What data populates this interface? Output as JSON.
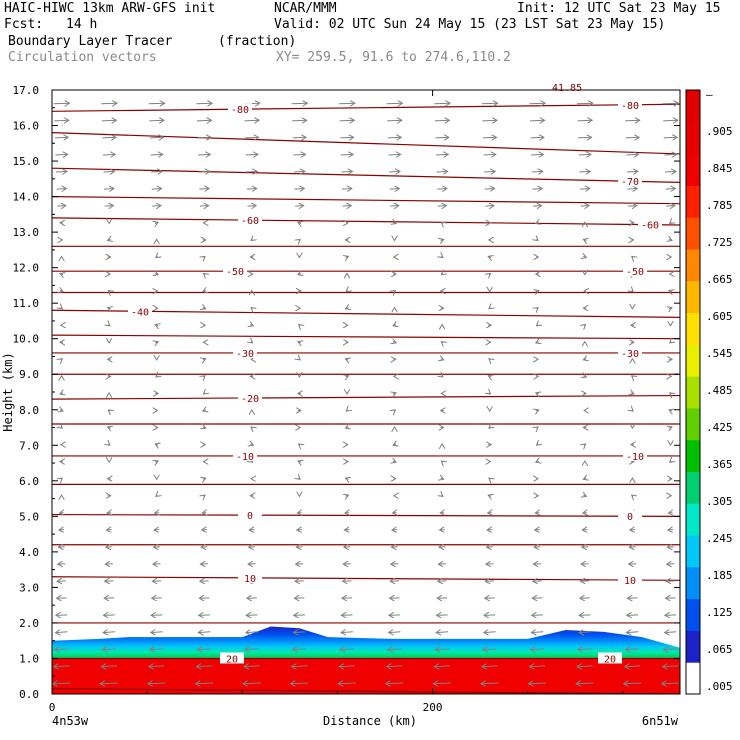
{
  "header": {
    "model": "HAIC-HIWC 13km ARW-GFS init",
    "org": "NCAR/MMM",
    "init": "Init: 12 UTC Sat 23 May 15",
    "fcst_label": "Fcst:",
    "fcst_value": "14 h",
    "valid": "Valid: 02 UTC Sun 24 May 15 (23 LST Sat 23 May 15)",
    "field_name": "Boundary Layer Tracer",
    "field_units": "(fraction)",
    "overlay_name": "Circulation vectors",
    "xy_range": "XY= 259.5, 91.6 to 274.6,110.2"
  },
  "chart_data": {
    "type": "heatmap",
    "xlabel": "Distance (km)",
    "ylabel": "Height (km)",
    "xlim": [
      0,
      330
    ],
    "ylim": [
      0,
      17
    ],
    "x_ticks": [
      {
        "value": 0,
        "label": "0"
      },
      {
        "value": 200,
        "label": "200"
      }
    ],
    "x_end_labels": {
      "left": "4n53w",
      "right": "6n51w"
    },
    "y_ticks": [
      "0.0",
      "1.0",
      "2.0",
      "3.0",
      "4.0",
      "5.0",
      "6.0",
      "7.0",
      "8.0",
      "9.0",
      "10.0",
      "11.0",
      "12.0",
      "13.0",
      "14.0",
      "15.0",
      "16.0",
      "17.0"
    ],
    "colorbar": {
      "labels": [
        ".005",
        ".065",
        ".125",
        ".185",
        ".245",
        ".305",
        ".365",
        ".425",
        ".485",
        ".545",
        ".605",
        ".665",
        ".725",
        ".785",
        ".845",
        ".905",
        "–"
      ],
      "colors": [
        "#ffffff",
        "#1c22c8",
        "#0050f0",
        "#0090f8",
        "#00c8f8",
        "#00e8c8",
        "#00d070",
        "#00c000",
        "#60d000",
        "#a8e000",
        "#e8f000",
        "#ffe000",
        "#ffb800",
        "#ff8800",
        "#ff5000",
        "#ff2000",
        "#f00000",
        "#e80000",
        "#e00000"
      ]
    },
    "tracer_layer": {
      "top_profile_km": [
        [
          0,
          1.5
        ],
        [
          25,
          1.55
        ],
        [
          40,
          1.6
        ],
        [
          60,
          1.6
        ],
        [
          100,
          1.6
        ],
        [
          115,
          1.9
        ],
        [
          130,
          1.85
        ],
        [
          145,
          1.6
        ],
        [
          180,
          1.55
        ],
        [
          250,
          1.55
        ],
        [
          270,
          1.8
        ],
        [
          290,
          1.75
        ],
        [
          310,
          1.6
        ],
        [
          330,
          1.3
        ]
      ],
      "core_top_km": 1.0,
      "core_value": 1.0
    },
    "isotherms": [
      {
        "value": -80,
        "y": [
          16.4,
          16.6
        ],
        "labels": [
          "-80",
          "-80"
        ]
      },
      {
        "value": -75,
        "y": [
          15.8,
          15.2
        ],
        "labels": []
      },
      {
        "value": -70,
        "y": [
          14.8,
          14.4
        ],
        "labels": [
          "-70"
        ]
      },
      {
        "value": -65,
        "y": [
          14.0,
          13.8
        ],
        "labels": []
      },
      {
        "value": -60,
        "y": [
          13.4,
          13.2
        ],
        "labels": [
          "-60",
          "-60"
        ]
      },
      {
        "value": -55,
        "y": [
          12.6,
          12.6
        ],
        "labels": []
      },
      {
        "value": -50,
        "y": [
          11.9,
          11.9
        ],
        "labels": [
          "-50",
          "-50"
        ]
      },
      {
        "value": -45,
        "y": [
          11.3,
          11.3
        ],
        "labels": []
      },
      {
        "value": -40,
        "y": [
          10.8,
          10.6
        ],
        "labels": [
          "-40"
        ]
      },
      {
        "value": -35,
        "y": [
          10.1,
          10.0
        ],
        "labels": []
      },
      {
        "value": -30,
        "y": [
          9.6,
          9.6
        ],
        "labels": [
          "-30",
          "-30"
        ]
      },
      {
        "value": -25,
        "y": [
          9.0,
          9.0
        ],
        "labels": []
      },
      {
        "value": -20,
        "y": [
          8.3,
          8.4
        ],
        "labels": [
          "-20"
        ]
      },
      {
        "value": -15,
        "y": [
          7.6,
          7.6
        ],
        "labels": []
      },
      {
        "value": -10,
        "y": [
          6.7,
          6.7
        ],
        "labels": [
          "-10",
          "-10"
        ]
      },
      {
        "value": -5,
        "y": [
          5.9,
          5.9
        ],
        "labels": []
      },
      {
        "value": 0,
        "y": [
          5.05,
          5.0
        ],
        "labels": [
          "0",
          "0"
        ]
      },
      {
        "value": 5,
        "y": [
          4.2,
          4.2
        ],
        "labels": []
      },
      {
        "value": 10,
        "y": [
          3.3,
          3.2
        ],
        "labels": [
          "10",
          "10"
        ]
      },
      {
        "value": 15,
        "y": [
          2.0,
          2.0
        ],
        "labels": []
      },
      {
        "value": 20,
        "y": [
          1.0,
          1.0
        ],
        "labels": [
          "20",
          "20"
        ]
      },
      {
        "value": 25,
        "y": [
          0.15,
          0.0
        ],
        "labels": []
      }
    ],
    "vectors": {
      "x_km": [
        5,
        30,
        55,
        80,
        105,
        130,
        155,
        180,
        205,
        230,
        255,
        280,
        305,
        325
      ],
      "upper_flow": "east",
      "mid_flow": "weak",
      "lower_flow": "west"
    },
    "partial_label": "41.85"
  }
}
